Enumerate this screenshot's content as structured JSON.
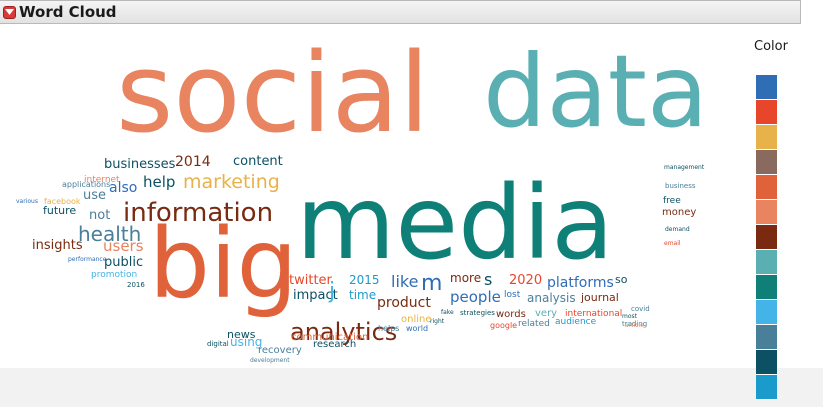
{
  "panel": {
    "title": "Word Cloud"
  },
  "legend": {
    "title": "Color",
    "colors": [
      "#2f6db5",
      "#e8462a",
      "#e8b24a",
      "#8a6a5e",
      "#e0623a",
      "#e8845f",
      "#7a2a10",
      "#5aafb3",
      "#0e8078",
      "#44b4e8",
      "#4a7f99",
      "#0b5163",
      "#1b9bcc"
    ]
  },
  "words": [
    {
      "text": "social",
      "color": "#e8845f"
    },
    {
      "text": "data",
      "color": "#5aafb3"
    },
    {
      "text": "media",
      "color": "#0e8078"
    },
    {
      "text": "big",
      "color": "#e0623a"
    },
    {
      "text": "information",
      "color": "#7a2a10"
    },
    {
      "text": "analytics",
      "color": "#7a2a10"
    },
    {
      "text": "marketing",
      "color": "#e8b24a"
    },
    {
      "text": "health",
      "color": "#4a7f99"
    },
    {
      "text": "users",
      "color": "#e8845f"
    },
    {
      "text": "businesses",
      "color": "#0b5163"
    },
    {
      "text": "2014",
      "color": "#7a2a10"
    },
    {
      "text": "content",
      "color": "#0b5163"
    },
    {
      "text": "help",
      "color": "#0b5163"
    },
    {
      "text": "also",
      "color": "#2f6db5"
    },
    {
      "text": "use",
      "color": "#4a7f99"
    },
    {
      "text": "not",
      "color": "#4a7f99"
    },
    {
      "text": "public",
      "color": "#0b5163"
    },
    {
      "text": "insights",
      "color": "#7a2a10"
    },
    {
      "text": "future",
      "color": "#0b5163"
    },
    {
      "text": "twitter",
      "color": "#e8462a"
    },
    {
      "text": "impact",
      "color": "#0b5163"
    },
    {
      "text": "j",
      "color": "#44b4e8"
    },
    {
      "text": "2015",
      "color": "#1b9bcc"
    },
    {
      "text": "time",
      "color": "#1b9bcc"
    },
    {
      "text": "like",
      "color": "#2f6db5"
    },
    {
      "text": "m",
      "color": "#2f6db5"
    },
    {
      "text": "more",
      "color": "#7a2a10"
    },
    {
      "text": "s",
      "color": "#0b5163"
    },
    {
      "text": "2020",
      "color": "#e8462a"
    },
    {
      "text": "platforms",
      "color": "#2f6db5"
    },
    {
      "text": "people",
      "color": "#2f6db5"
    },
    {
      "text": "analysis",
      "color": "#4a7f99"
    },
    {
      "text": "journal",
      "color": "#7a2a10"
    },
    {
      "text": "product",
      "color": "#7a2a10"
    },
    {
      "text": "so",
      "color": "#0b5163"
    },
    {
      "text": "research",
      "color": "#0b5163"
    },
    {
      "text": "communication",
      "color": "#e0623a"
    },
    {
      "text": "news",
      "color": "#0b5163"
    },
    {
      "text": "using",
      "color": "#44b4e8"
    },
    {
      "text": "recovery",
      "color": "#4a7f99"
    },
    {
      "text": "online",
      "color": "#e8b24a"
    },
    {
      "text": "words",
      "color": "#7a2a10"
    },
    {
      "text": "very",
      "color": "#5aafb3"
    },
    {
      "text": "free",
      "color": "#0b5163"
    },
    {
      "text": "money",
      "color": "#7a2a10"
    },
    {
      "text": "lost",
      "color": "#2f6db5"
    },
    {
      "text": "international",
      "color": "#e8462a"
    },
    {
      "text": "audience",
      "color": "#1b9bcc"
    },
    {
      "text": "related",
      "color": "#4a7f99"
    },
    {
      "text": "google",
      "color": "#e8462a"
    },
    {
      "text": "world",
      "color": "#2f6db5"
    },
    {
      "text": "helps",
      "color": "#4a7f99"
    },
    {
      "text": "strategies",
      "color": "#0b5163"
    },
    {
      "text": "fake",
      "color": "#0b5163"
    },
    {
      "text": "right",
      "color": "#0b5163"
    },
    {
      "text": "promotion",
      "color": "#44b4e8"
    },
    {
      "text": "internet",
      "color": "#e8845f"
    },
    {
      "text": "applications",
      "color": "#4a7f99"
    },
    {
      "text": "facebook",
      "color": "#e8b24a"
    },
    {
      "text": "business",
      "color": "#4a7f99"
    },
    {
      "text": "management",
      "color": "#0b5163"
    },
    {
      "text": "digital",
      "color": "#0b5163"
    },
    {
      "text": "development",
      "color": "#4a7f99"
    },
    {
      "text": "covid",
      "color": "#4a7f99"
    },
    {
      "text": "trading",
      "color": "#4a7f99"
    },
    {
      "text": "most",
      "color": "#0b5163"
    },
    {
      "text": "article",
      "color": "#e8845f"
    },
    {
      "text": "demand",
      "color": "#0b5163"
    },
    {
      "text": "performance",
      "color": "#2f6db5"
    },
    {
      "text": "2016",
      "color": "#0b5163"
    },
    {
      "text": "various",
      "color": "#2f6db5"
    },
    {
      "text": "email",
      "color": "#e8462a"
    }
  ]
}
